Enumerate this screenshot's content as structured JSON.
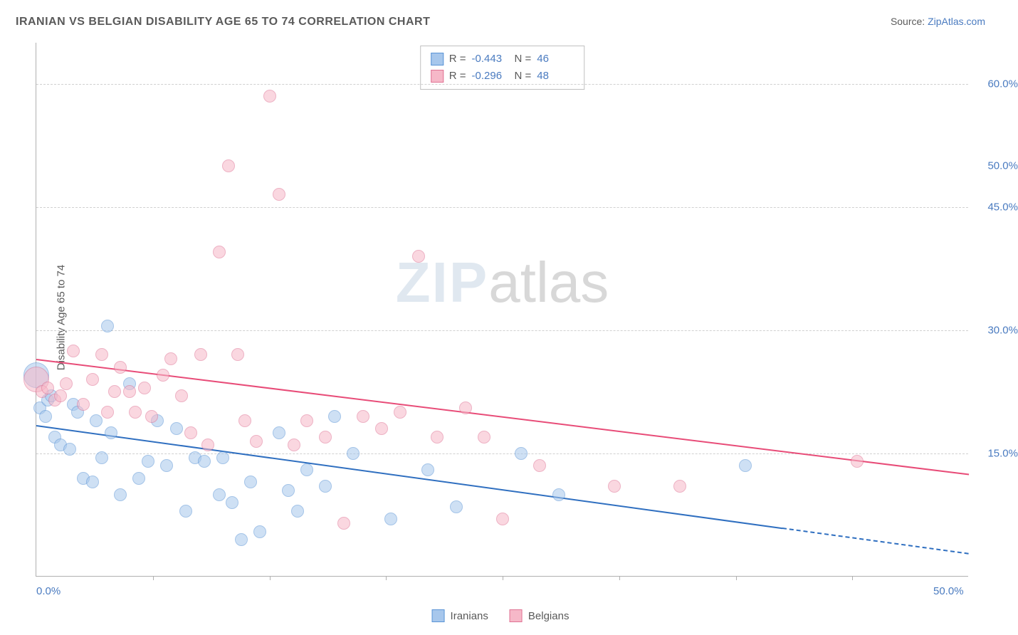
{
  "title": "IRANIAN VS BELGIAN DISABILITY AGE 65 TO 74 CORRELATION CHART",
  "source_prefix": "Source: ",
  "source_link": "ZipAtlas.com",
  "ylabel": "Disability Age 65 to 74",
  "watermark_zip": "ZIP",
  "watermark_atlas": "atlas",
  "chart": {
    "type": "scatter",
    "x_domain": [
      0,
      50
    ],
    "y_domain": [
      0,
      65
    ],
    "grid_color": "#d0d0d0",
    "axis_color": "#b0b0b0",
    "background_color": "#ffffff",
    "gridlines_y": [
      15,
      30,
      45,
      60
    ],
    "yticks": [
      {
        "v": 15,
        "label": "15.0%"
      },
      {
        "v": 30,
        "label": "30.0%"
      },
      {
        "v": 45,
        "label": "45.0%"
      },
      {
        "v": 50,
        "label": "50.0%"
      },
      {
        "v": 60,
        "label": "60.0%"
      }
    ],
    "xticks_major": [
      0,
      50
    ],
    "xtick_labels": [
      {
        "v": 0,
        "label": "0.0%"
      },
      {
        "v": 50,
        "label": "50.0%"
      }
    ],
    "xticks_minor": [
      6.25,
      12.5,
      18.75,
      25,
      31.25,
      37.5,
      43.75
    ],
    "label_color": "#4a7bc0",
    "label_fontsize": 15,
    "text_color": "#5a5a5a",
    "marker_radius": 9,
    "marker_radius_large": 18,
    "marker_opacity": 0.55,
    "series": [
      {
        "name": "Iranians",
        "fill": "#a7c7ec",
        "stroke": "#5a94d6",
        "line_color": "#2f6fc0",
        "R": "-0.443",
        "N": "46",
        "trend": {
          "x1": 0,
          "y1": 18.5,
          "x2": 40,
          "y2": 6.0,
          "dash_from_x": 40,
          "dash_to_x": 50,
          "dash_to_y": 2.9
        },
        "points": [
          {
            "x": 0.0,
            "y": 24.5,
            "r": 18
          },
          {
            "x": 0.2,
            "y": 20.5
          },
          {
            "x": 0.5,
            "y": 19.5
          },
          {
            "x": 0.6,
            "y": 21.5
          },
          {
            "x": 0.8,
            "y": 22.0
          },
          {
            "x": 1.0,
            "y": 17.0
          },
          {
            "x": 1.3,
            "y": 16.0
          },
          {
            "x": 1.8,
            "y": 15.5
          },
          {
            "x": 2.0,
            "y": 21.0
          },
          {
            "x": 2.2,
            "y": 20.0
          },
          {
            "x": 2.5,
            "y": 12.0
          },
          {
            "x": 3.0,
            "y": 11.5
          },
          {
            "x": 3.2,
            "y": 19.0
          },
          {
            "x": 3.5,
            "y": 14.5
          },
          {
            "x": 3.8,
            "y": 30.5
          },
          {
            "x": 4.0,
            "y": 17.5
          },
          {
            "x": 4.5,
            "y": 10.0
          },
          {
            "x": 5.0,
            "y": 23.5
          },
          {
            "x": 5.5,
            "y": 12.0
          },
          {
            "x": 6.0,
            "y": 14.0
          },
          {
            "x": 6.5,
            "y": 19.0
          },
          {
            "x": 7.0,
            "y": 13.5
          },
          {
            "x": 7.5,
            "y": 18.0
          },
          {
            "x": 8.0,
            "y": 8.0
          },
          {
            "x": 8.5,
            "y": 14.5
          },
          {
            "x": 9.0,
            "y": 14.0
          },
          {
            "x": 9.8,
            "y": 10.0
          },
          {
            "x": 10.0,
            "y": 14.5
          },
          {
            "x": 10.5,
            "y": 9.0
          },
          {
            "x": 11.0,
            "y": 4.5
          },
          {
            "x": 11.5,
            "y": 11.5
          },
          {
            "x": 12.0,
            "y": 5.5
          },
          {
            "x": 13.0,
            "y": 17.5
          },
          {
            "x": 13.5,
            "y": 10.5
          },
          {
            "x": 14.0,
            "y": 8.0
          },
          {
            "x": 14.5,
            "y": 13.0
          },
          {
            "x": 15.5,
            "y": 11.0
          },
          {
            "x": 16.0,
            "y": 19.5
          },
          {
            "x": 17.0,
            "y": 15.0
          },
          {
            "x": 19.0,
            "y": 7.0
          },
          {
            "x": 21.0,
            "y": 13.0
          },
          {
            "x": 22.5,
            "y": 8.5
          },
          {
            "x": 26.0,
            "y": 15.0
          },
          {
            "x": 28.0,
            "y": 10.0
          },
          {
            "x": 38.0,
            "y": 13.5
          }
        ]
      },
      {
        "name": "Belgians",
        "fill": "#f6b8c8",
        "stroke": "#e07394",
        "line_color": "#e84c78",
        "R": "-0.296",
        "N": "48",
        "trend": {
          "x1": 0,
          "y1": 26.5,
          "x2": 50,
          "y2": 12.5
        },
        "points": [
          {
            "x": 0.0,
            "y": 24.0,
            "r": 18
          },
          {
            "x": 0.3,
            "y": 22.5
          },
          {
            "x": 0.6,
            "y": 23.0
          },
          {
            "x": 1.0,
            "y": 21.5
          },
          {
            "x": 1.3,
            "y": 22.0
          },
          {
            "x": 1.6,
            "y": 23.5
          },
          {
            "x": 2.0,
            "y": 27.5
          },
          {
            "x": 2.5,
            "y": 21.0
          },
          {
            "x": 3.0,
            "y": 24.0
          },
          {
            "x": 3.5,
            "y": 27.0
          },
          {
            "x": 3.8,
            "y": 20.0
          },
          {
            "x": 4.2,
            "y": 22.5
          },
          {
            "x": 4.5,
            "y": 25.5
          },
          {
            "x": 5.0,
            "y": 22.5
          },
          {
            "x": 5.3,
            "y": 20.0
          },
          {
            "x": 5.8,
            "y": 23.0
          },
          {
            "x": 6.2,
            "y": 19.5
          },
          {
            "x": 6.8,
            "y": 24.5
          },
          {
            "x": 7.2,
            "y": 26.5
          },
          {
            "x": 7.8,
            "y": 22.0
          },
          {
            "x": 8.3,
            "y": 17.5
          },
          {
            "x": 8.8,
            "y": 27.0
          },
          {
            "x": 9.2,
            "y": 16.0
          },
          {
            "x": 9.8,
            "y": 39.5
          },
          {
            "x": 10.3,
            "y": 50.0
          },
          {
            "x": 10.8,
            "y": 27.0
          },
          {
            "x": 11.2,
            "y": 19.0
          },
          {
            "x": 11.8,
            "y": 16.5
          },
          {
            "x": 12.5,
            "y": 58.5
          },
          {
            "x": 13.0,
            "y": 46.5
          },
          {
            "x": 13.8,
            "y": 16.0
          },
          {
            "x": 14.5,
            "y": 19.0
          },
          {
            "x": 15.5,
            "y": 17.0
          },
          {
            "x": 16.5,
            "y": 6.5
          },
          {
            "x": 17.5,
            "y": 19.5
          },
          {
            "x": 18.5,
            "y": 18.0
          },
          {
            "x": 19.5,
            "y": 20.0
          },
          {
            "x": 20.5,
            "y": 39.0
          },
          {
            "x": 21.5,
            "y": 17.0
          },
          {
            "x": 23.0,
            "y": 20.5
          },
          {
            "x": 24.0,
            "y": 17.0
          },
          {
            "x": 25.0,
            "y": 7.0
          },
          {
            "x": 27.0,
            "y": 13.5
          },
          {
            "x": 31.0,
            "y": 11.0
          },
          {
            "x": 34.5,
            "y": 11.0
          },
          {
            "x": 44.0,
            "y": 14.0
          }
        ]
      }
    ]
  },
  "stats_legend": {
    "R_label": "R =",
    "N_label": "N ="
  },
  "bottom_legend": {
    "items": [
      "Iranians",
      "Belgians"
    ]
  }
}
